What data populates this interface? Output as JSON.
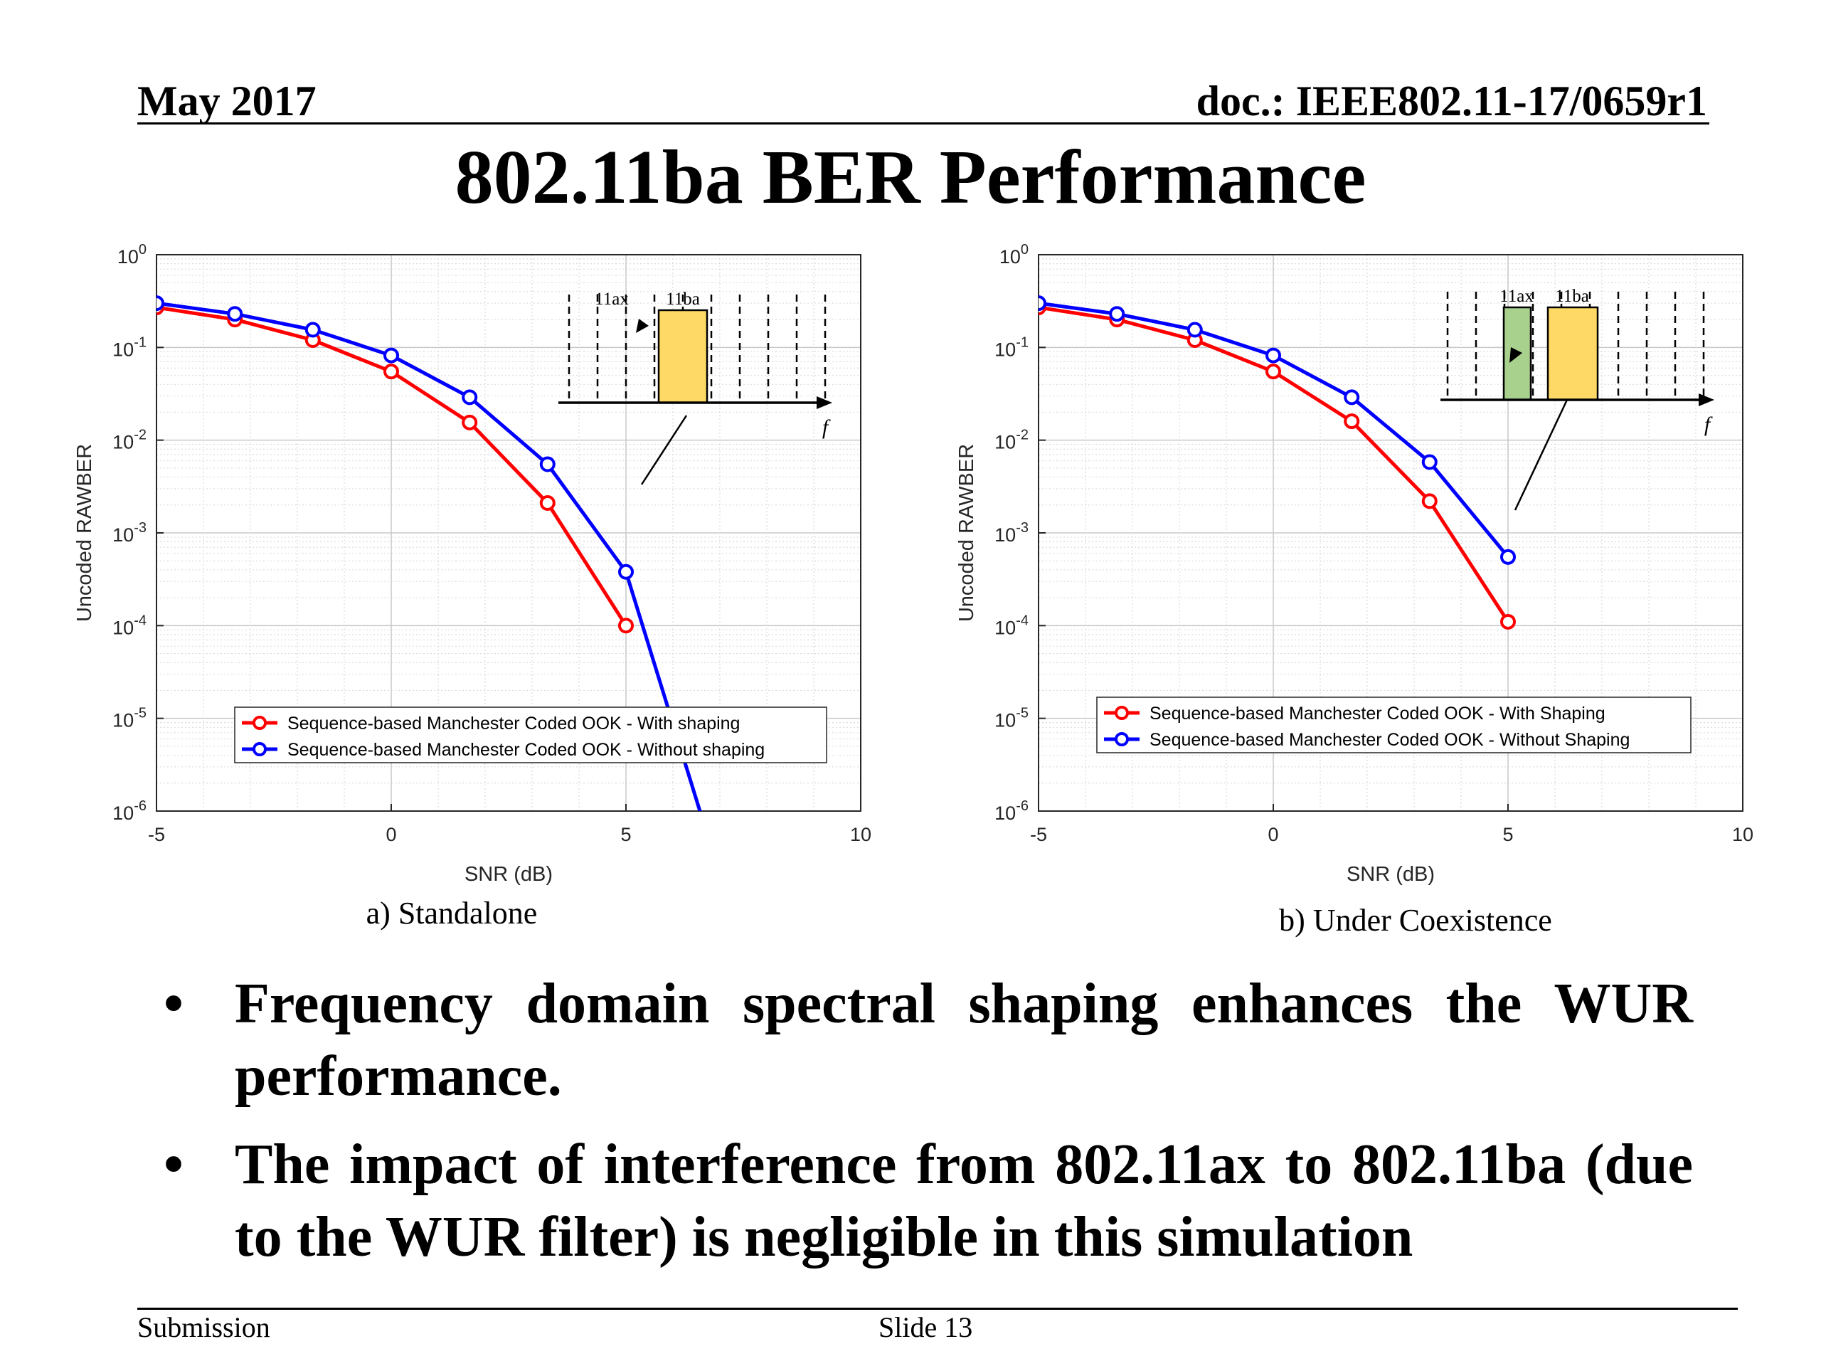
{
  "header": {
    "date": "May 2017",
    "doc": "doc.: IEEE802.11-17/0659r1"
  },
  "title": "802.11ba BER Performance",
  "bullets": [
    "Frequency domain spectral shaping enhances the WUR performance.",
    "The impact of interference from 802.11ax to 802.11ba (due to the WUR filter) is negligible in this simulation"
  ],
  "footer": {
    "left": "Submission",
    "center": "Slide 13"
  },
  "colors": {
    "red": "#ff0000",
    "blue": "#0000ff",
    "yellow": "#ffd966",
    "green": "#a9d18e"
  },
  "chart_data": [
    {
      "type": "line",
      "caption": "a) Standalone",
      "xlabel": "SNR (dB)",
      "ylabel": "Uncoded RAWBER",
      "xlim": [
        -5,
        10
      ],
      "ylim": [
        1e-06,
        1
      ],
      "yscale": "log",
      "grid": true,
      "xticks": [
        "-5",
        "0",
        "5",
        "10"
      ],
      "yticks": [
        "10^0",
        "10^-1",
        "10^-2",
        "10^-3",
        "10^-4",
        "10^-5",
        "10^-6"
      ],
      "legend_position": "bottom-right",
      "series": [
        {
          "name": "Sequence-based Manchester Coded OOK - With shaping",
          "color": "#ff0000",
          "x": [
            -5,
            -3.33,
            -1.67,
            0,
            1.67,
            3.33,
            5
          ],
          "y": [
            0.27,
            0.2,
            0.12,
            0.055,
            0.0155,
            0.0021,
            0.0001
          ]
        },
        {
          "name": "Sequence-based Manchester Coded OOK - Without shaping",
          "color": "#0000ff",
          "x": [
            -5,
            -3.33,
            -1.67,
            0,
            1.67,
            3.33,
            5,
            6.67
          ],
          "y": [
            0.3,
            0.23,
            0.155,
            0.082,
            0.029,
            0.0055,
            0.00038,
            7e-07
          ],
          "markers_through": 6
        }
      ],
      "inset": {
        "labels": [
          "11ax",
          "11ba"
        ],
        "axis_label": "f",
        "bands": [
          {
            "label": "11ba",
            "color": "#ffd966"
          }
        ]
      }
    },
    {
      "type": "line",
      "caption": "b) Under Coexistence",
      "xlabel": "SNR (dB)",
      "ylabel": "Uncoded RAWBER",
      "xlim": [
        -5,
        10
      ],
      "ylim": [
        1e-06,
        1
      ],
      "yscale": "log",
      "grid": true,
      "xticks": [
        "-5",
        "0",
        "5",
        "10"
      ],
      "yticks": [
        "10^0",
        "10^-1",
        "10^-2",
        "10^-3",
        "10^-4",
        "10^-5",
        "10^-6"
      ],
      "legend_position": "bottom-right",
      "series": [
        {
          "name": "Sequence-based Manchester Coded OOK - With Shaping",
          "color": "#ff0000",
          "x": [
            -5,
            -3.33,
            -1.67,
            0,
            1.67,
            3.33,
            5
          ],
          "y": [
            0.27,
            0.2,
            0.12,
            0.055,
            0.016,
            0.0022,
            0.00011
          ]
        },
        {
          "name": "Sequence-based Manchester Coded OOK - Without Shaping",
          "color": "#0000ff",
          "x": [
            -5,
            -3.33,
            -1.67,
            0,
            1.67,
            3.33,
            5
          ],
          "y": [
            0.3,
            0.23,
            0.155,
            0.082,
            0.029,
            0.0058,
            0.00055
          ]
        }
      ],
      "inset": {
        "labels": [
          "11ax",
          "11ba"
        ],
        "axis_label": "f",
        "bands": [
          {
            "label": "11ax",
            "color": "#a9d18e"
          },
          {
            "label": "11ba",
            "color": "#ffd966"
          }
        ]
      }
    }
  ]
}
